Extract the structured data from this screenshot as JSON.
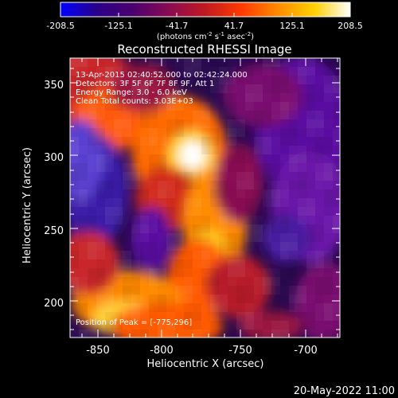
{
  "colorbar": {
    "ticks": [
      "-208.5",
      "-125.1",
      "-41.7",
      "41.7",
      "125.1",
      "208.5"
    ],
    "unit_parts": [
      "(photons cm",
      "-2",
      " s",
      "-1",
      " asec",
      "-2",
      ")"
    ],
    "colors": [
      "#0000ff",
      "#2a0088",
      "#4b006e",
      "#8a0b52",
      "#c01a20",
      "#ff3a00",
      "#ff8a00",
      "#ffd000",
      "#ffffff"
    ]
  },
  "image": {
    "title": "Reconstructed RHESSI Image",
    "annotations": [
      "13-Apr-2015 02:40:52.000 to 02:42:24.000",
      "Detectors: 3F 5F 6F 7F 8F 9F, Att 1",
      "Energy Range: 3.0 - 6.0 keV",
      "Clean    Total counts: 3.03E+03"
    ],
    "peak_label": "Position of Peak = [-775,296]"
  },
  "axes": {
    "xlabel": "Heliocentric X (arcsec)",
    "ylabel": "Heliocentric Y (arcsec)",
    "xticks": [
      "-850",
      "-800",
      "-750",
      "-700"
    ],
    "yticks": [
      "200",
      "250",
      "300",
      "350"
    ]
  },
  "footer": {
    "timestamp": "20-May-2022 11:00"
  }
}
